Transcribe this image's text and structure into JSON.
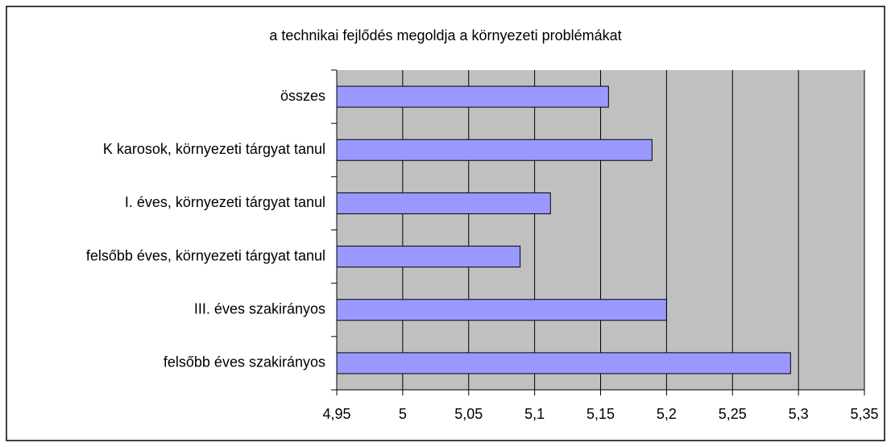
{
  "chart_data": {
    "type": "bar",
    "orientation": "horizontal",
    "title": "a technikai fejlődés megoldja a környezeti problémákat",
    "categories": [
      "összes",
      "K karosok, környezeti tárgyat tanul",
      "I. éves, környezeti tárgyat tanul",
      "felsőbb éves, környezeti tárgyat tanul",
      "III. éves szakirányos",
      "felsőbb éves szakirányos"
    ],
    "values": [
      5.156,
      5.189,
      5.112,
      5.089,
      5.2,
      5.294
    ],
    "color": "#9999ff",
    "xlim": [
      4.95,
      5.35
    ],
    "xticks": [
      {
        "value": 4.95,
        "label": "4,95"
      },
      5,
      {
        "value": 5.05,
        "label": "5,05"
      },
      {
        "value": 5.1,
        "label": "5,1"
      },
      {
        "value": 5.15,
        "label": "5,15"
      },
      {
        "value": 5.2,
        "label": "5,2"
      },
      {
        "value": 5.25,
        "label": "5,25"
      },
      {
        "value": 5.3,
        "label": "5,3"
      },
      {
        "value": 5.35,
        "label": "5,35"
      }
    ],
    "grid": true
  }
}
